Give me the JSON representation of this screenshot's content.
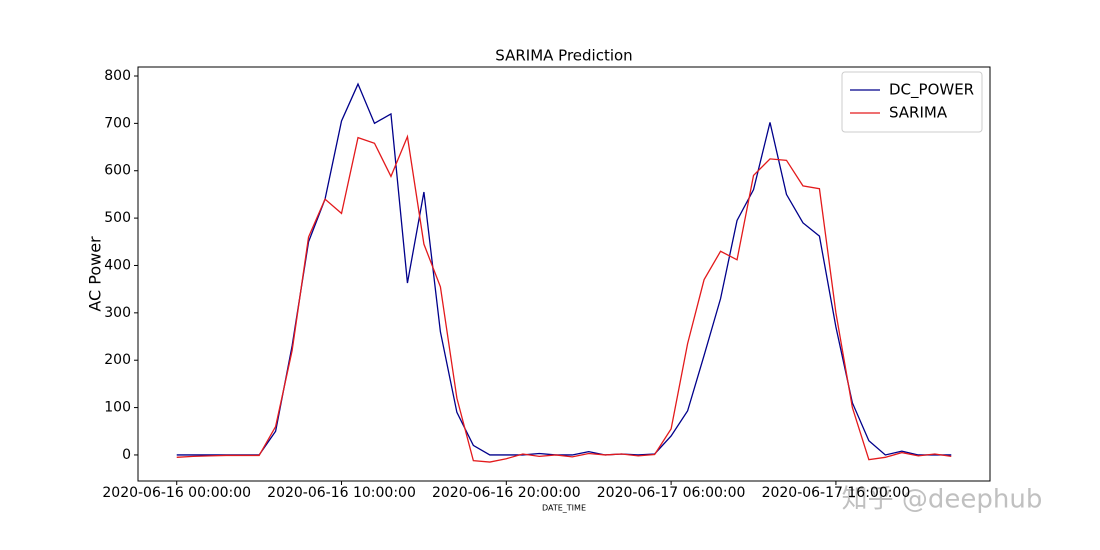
{
  "chart_data": {
    "type": "line",
    "title": "SARIMA Prediction",
    "xlabel": "DATE_TIME",
    "ylabel": "AC Power",
    "x": [
      "2020-06-16 00:00:00",
      "2020-06-16 01:00:00",
      "2020-06-16 02:00:00",
      "2020-06-16 03:00:00",
      "2020-06-16 04:00:00",
      "2020-06-16 05:00:00",
      "2020-06-16 06:00:00",
      "2020-06-16 07:00:00",
      "2020-06-16 08:00:00",
      "2020-06-16 09:00:00",
      "2020-06-16 10:00:00",
      "2020-06-16 11:00:00",
      "2020-06-16 12:00:00",
      "2020-06-16 13:00:00",
      "2020-06-16 14:00:00",
      "2020-06-16 15:00:00",
      "2020-06-16 16:00:00",
      "2020-06-16 17:00:00",
      "2020-06-16 18:00:00",
      "2020-06-16 19:00:00",
      "2020-06-16 20:00:00",
      "2020-06-16 21:00:00",
      "2020-06-16 22:00:00",
      "2020-06-16 23:00:00",
      "2020-06-17 00:00:00",
      "2020-06-17 01:00:00",
      "2020-06-17 02:00:00",
      "2020-06-17 03:00:00",
      "2020-06-17 04:00:00",
      "2020-06-17 05:00:00",
      "2020-06-17 06:00:00",
      "2020-06-17 07:00:00",
      "2020-06-17 08:00:00",
      "2020-06-17 09:00:00",
      "2020-06-17 10:00:00",
      "2020-06-17 11:00:00",
      "2020-06-17 12:00:00",
      "2020-06-17 13:00:00",
      "2020-06-17 14:00:00",
      "2020-06-17 15:00:00",
      "2020-06-17 16:00:00",
      "2020-06-17 17:00:00",
      "2020-06-17 18:00:00",
      "2020-06-17 19:00:00",
      "2020-06-17 20:00:00",
      "2020-06-17 21:00:00",
      "2020-06-17 22:00:00",
      "2020-06-17 23:00:00"
    ],
    "series": [
      {
        "name": "DC_POWER",
        "color": "#00008b",
        "values": [
          0,
          0,
          0,
          0,
          0,
          0,
          50,
          230,
          450,
          540,
          705,
          783,
          700,
          720,
          363,
          555,
          260,
          90,
          20,
          0,
          0,
          0,
          3,
          0,
          0,
          7,
          0,
          2,
          0,
          2,
          40,
          93,
          210,
          330,
          495,
          560,
          702,
          550,
          490,
          462,
          270,
          110,
          30,
          0,
          8,
          0,
          0,
          0
        ]
      },
      {
        "name": "SARIMA",
        "color": "#e31a1c",
        "values": [
          -5,
          -3,
          -2,
          -1,
          -1,
          -1,
          60,
          220,
          460,
          540,
          510,
          670,
          658,
          588,
          672,
          445,
          355,
          120,
          -12,
          -15,
          -8,
          2,
          -3,
          0,
          -4,
          3,
          0,
          2,
          -2,
          1,
          55,
          235,
          370,
          430,
          412,
          590,
          625,
          622,
          568,
          562,
          300,
          100,
          -10,
          -5,
          5,
          -2,
          2,
          -3
        ]
      }
    ],
    "xticks": [
      "2020-06-16 00:00:00",
      "2020-06-16 10:00:00",
      "2020-06-16 20:00:00",
      "2020-06-17 06:00:00",
      "2020-06-17 16:00:00"
    ],
    "ylim": [
      -55,
      819
    ],
    "yticks": [
      0,
      100,
      200,
      300,
      400,
      500,
      600,
      700,
      800
    ],
    "legend": "upper right",
    "watermark": "知乎 @deephub"
  }
}
